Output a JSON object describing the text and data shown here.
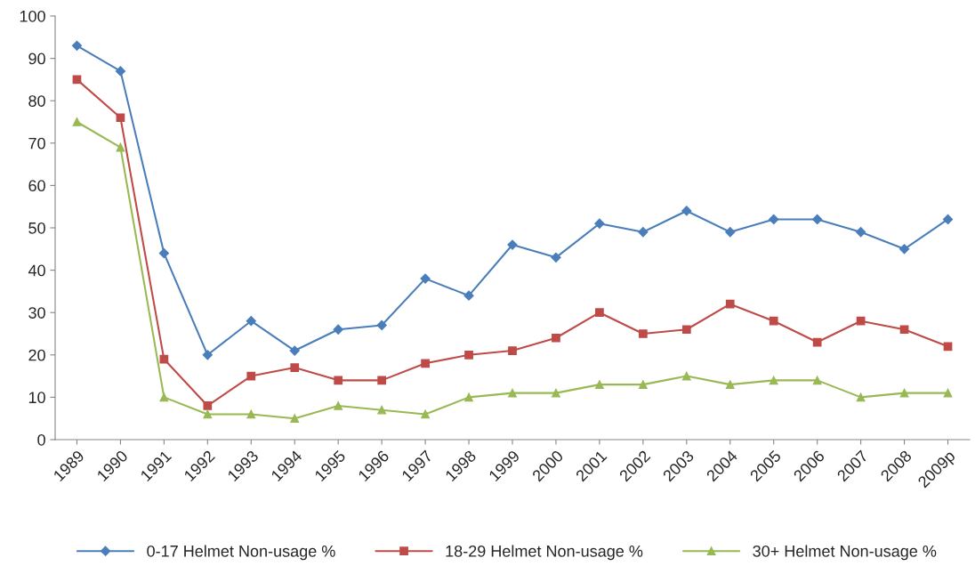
{
  "chart_data": {
    "type": "line",
    "categories": [
      "1989",
      "1990",
      "1991",
      "1992",
      "1993",
      "1994",
      "1995",
      "1996",
      "1997",
      "1998",
      "1999",
      "2000",
      "2001",
      "2002",
      "2003",
      "2004",
      "2005",
      "2006",
      "2007",
      "2008",
      "2009p"
    ],
    "series": [
      {
        "name": "0-17 Helmet Non-usage %",
        "color": "#4a7ebb",
        "marker": "diamond",
        "values": [
          93,
          87,
          44,
          20,
          28,
          21,
          26,
          27,
          38,
          34,
          46,
          43,
          51,
          49,
          54,
          49,
          52,
          52,
          49,
          45,
          52
        ]
      },
      {
        "name": "18-29 Helmet Non-usage %",
        "color": "#be4b48",
        "marker": "square",
        "values": [
          85,
          76,
          19,
          8,
          15,
          17,
          14,
          14,
          18,
          20,
          21,
          24,
          30,
          25,
          26,
          32,
          28,
          23,
          28,
          26,
          22
        ]
      },
      {
        "name": "30+ Helmet Non-usage %",
        "color": "#98b954",
        "marker": "triangle",
        "values": [
          75,
          69,
          10,
          6,
          6,
          5,
          8,
          7,
          6,
          10,
          11,
          11,
          13,
          13,
          15,
          13,
          14,
          14,
          10,
          11,
          11
        ]
      }
    ],
    "ylim": [
      0,
      100
    ],
    "yticks": [
      0,
      10,
      20,
      30,
      40,
      50,
      60,
      70,
      80,
      90,
      100
    ],
    "grid": false,
    "legend": "bottom",
    "line_style": "solid"
  }
}
